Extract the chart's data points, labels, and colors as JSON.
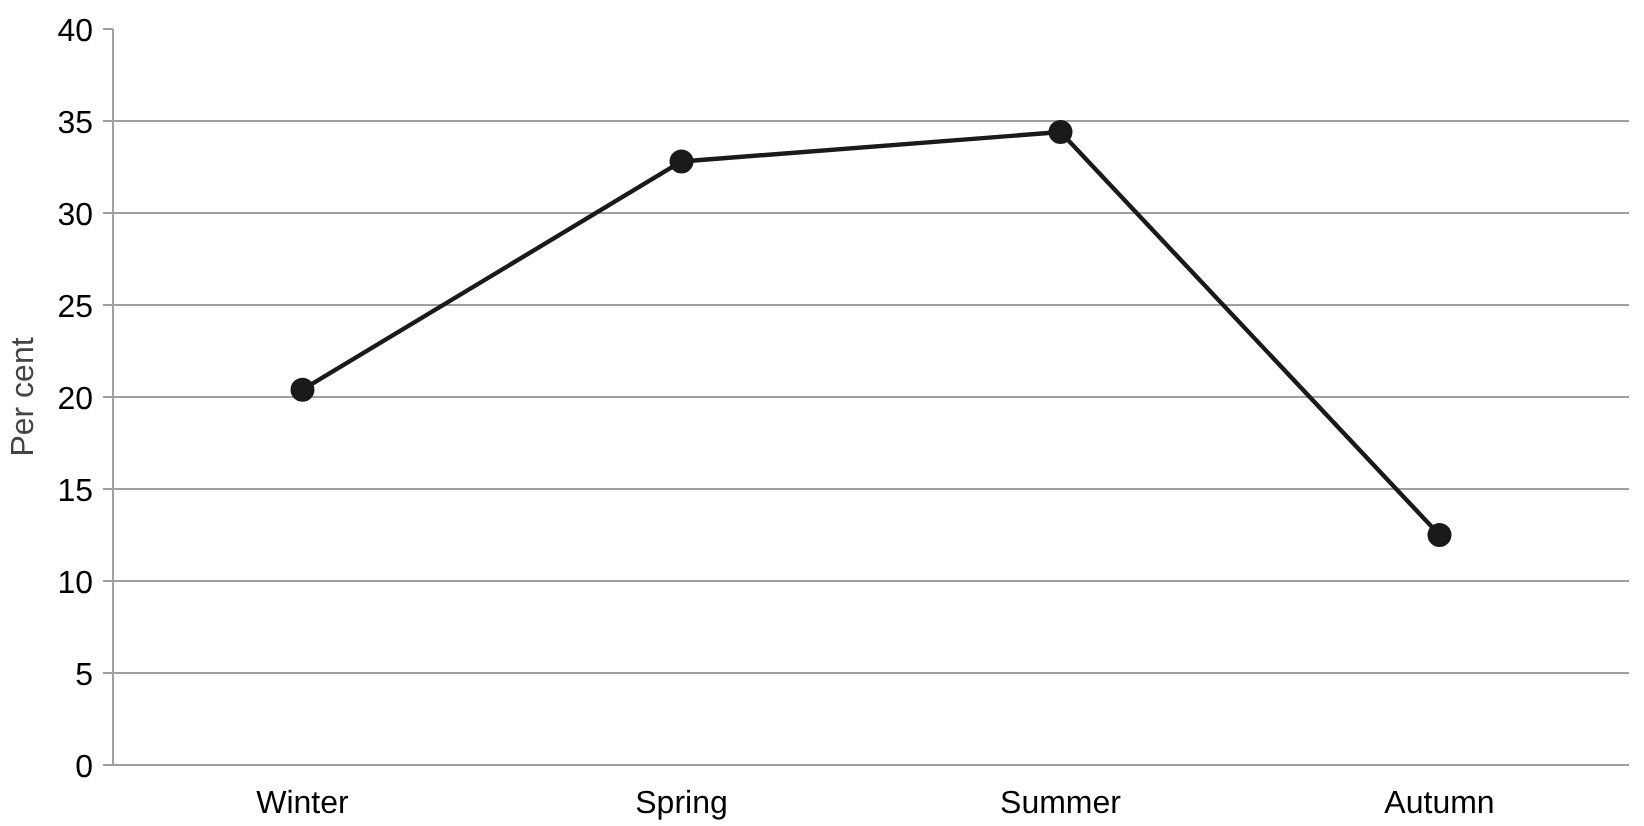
{
  "chart_data": {
    "type": "line",
    "ylabel": "Per cent",
    "categories": [
      "Winter",
      "Spring",
      "Summer",
      "Autumn"
    ],
    "series": [
      {
        "color": "#1a1a1a",
        "values": [
          20.4,
          32.8,
          34.4,
          12.5
        ]
      }
    ],
    "ylim": [
      0,
      40
    ],
    "yticks": [
      0,
      5,
      10,
      15,
      20,
      25,
      30,
      35,
      40
    ],
    "grid": "y",
    "marker": "circle",
    "line_style": "solid"
  }
}
